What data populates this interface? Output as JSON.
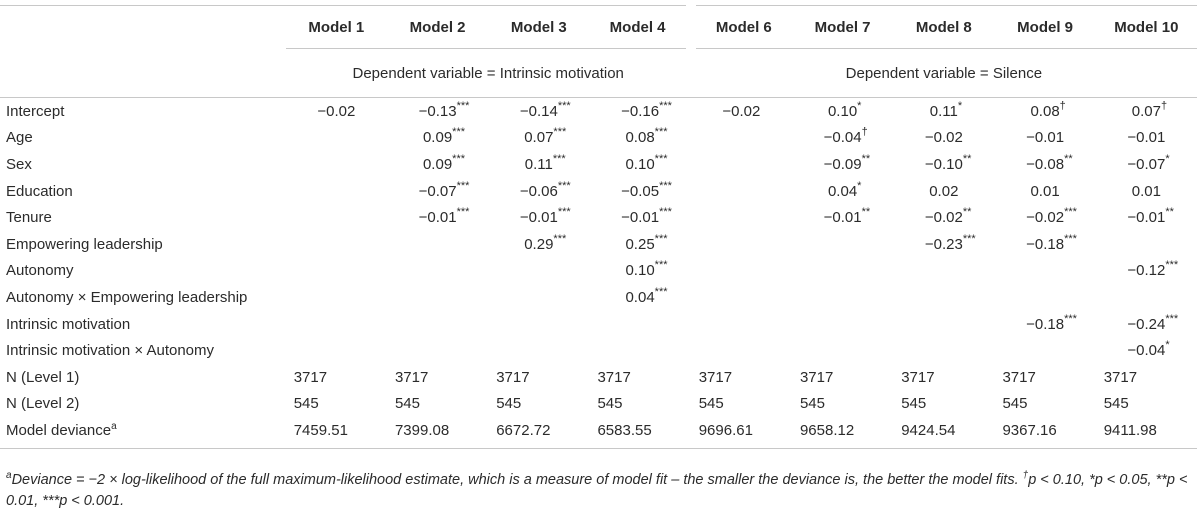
{
  "table": {
    "headers": [
      null,
      "Model 1",
      "Model 2",
      "Model 3",
      "Model 4",
      "Model 6",
      "Model 7",
      "Model 8",
      "Model 9",
      "Model 10"
    ],
    "groups": [
      "Dependent variable = Intrinsic motivation",
      "Dependent variable = Silence"
    ],
    "rows": [
      {
        "label": "Intercept",
        "cells": [
          "−0.02",
          [
            "−0.13",
            "***"
          ],
          [
            "−0.14",
            "***"
          ],
          [
            "−0.16",
            "***"
          ],
          "−0.02",
          [
            "0.10",
            "*"
          ],
          [
            "0.11",
            "*"
          ],
          [
            "0.08",
            "†"
          ],
          [
            "0.07",
            "†"
          ]
        ]
      },
      {
        "label": "Age",
        "cells": [
          null,
          [
            "0.09",
            "***"
          ],
          [
            "0.07",
            "***"
          ],
          [
            "0.08",
            "***"
          ],
          null,
          [
            "−0.04",
            "†"
          ],
          "−0.02",
          "−0.01",
          "−0.01"
        ]
      },
      {
        "label": "Sex",
        "cells": [
          null,
          [
            "0.09",
            "***"
          ],
          [
            "0.11",
            "***"
          ],
          [
            "0.10",
            "***"
          ],
          null,
          [
            "−0.09",
            "**"
          ],
          [
            "−0.10",
            "**"
          ],
          [
            "−0.08",
            "**"
          ],
          [
            "−0.07",
            "*"
          ]
        ]
      },
      {
        "label": "Education",
        "cells": [
          null,
          [
            "−0.07",
            "***"
          ],
          [
            "−0.06",
            "***"
          ],
          [
            "−0.05",
            "***"
          ],
          null,
          [
            "0.04",
            "*"
          ],
          "0.02",
          "0.01",
          "0.01"
        ]
      },
      {
        "label": "Tenure",
        "cells": [
          null,
          [
            "−0.01",
            "***"
          ],
          [
            "−0.01",
            "***"
          ],
          [
            "−0.01",
            "***"
          ],
          null,
          [
            "−0.01",
            "**"
          ],
          [
            "−0.02",
            "**"
          ],
          [
            "−0.02",
            "***"
          ],
          [
            "−0.01",
            "**"
          ]
        ]
      },
      {
        "label": "Empowering leadership",
        "cells": [
          null,
          null,
          [
            "0.29",
            "***"
          ],
          [
            "0.25",
            "***"
          ],
          null,
          null,
          [
            "−0.23",
            "***"
          ],
          [
            "−0.18",
            "***"
          ],
          null
        ]
      },
      {
        "label": "Autonomy",
        "cells": [
          null,
          null,
          null,
          [
            "0.10",
            "***"
          ],
          null,
          null,
          null,
          null,
          [
            "−0.12",
            "***"
          ]
        ]
      },
      {
        "label": "Autonomy × Empowering leadership",
        "cells": [
          null,
          null,
          null,
          [
            "0.04",
            "***"
          ],
          null,
          null,
          null,
          null,
          null
        ]
      },
      {
        "label": "Intrinsic motivation",
        "cells": [
          null,
          null,
          null,
          null,
          null,
          null,
          null,
          [
            "−0.18",
            "***"
          ],
          [
            "−0.24",
            "***"
          ]
        ]
      },
      {
        "label": "Intrinsic motivation × Autonomy",
        "cells": [
          null,
          null,
          null,
          null,
          null,
          null,
          null,
          null,
          [
            "−0.04",
            "*"
          ]
        ]
      },
      {
        "label": "N (Level 1)",
        "count": true,
        "cells": [
          "3717",
          "3717",
          "3717",
          "3717",
          "3717",
          "3717",
          "3717",
          "3717",
          "3717"
        ]
      },
      {
        "label": "N (Level 2)",
        "count": true,
        "cells": [
          "545",
          "545",
          "545",
          "545",
          "545",
          "545",
          "545",
          "545",
          "545"
        ]
      },
      {
        "label": "Model deviance",
        "label_sup": "a",
        "count": true,
        "cells": [
          "7459.51",
          "7399.08",
          "6672.72",
          "6583.55",
          "9696.61",
          "9658.12",
          "9424.54",
          "9367.16",
          "9411.98"
        ]
      }
    ],
    "footnote": [
      {
        "sup": "a"
      },
      {
        "text": "Deviance = −2 × log-likelihood of the full maximum-likelihood estimate, which is a measure of model fit – the smaller the deviance is, the better the model fits. "
      },
      {
        "sup": "†"
      },
      {
        "text": "p < 0.10, *p < 0.05, **p < 0.01, ***p < 0.001."
      }
    ]
  }
}
